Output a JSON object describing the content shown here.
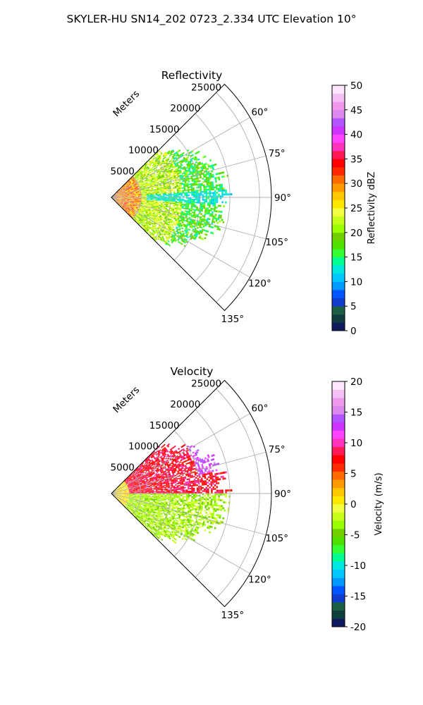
{
  "figure": {
    "title": "SKYLER-HU  SN14_202  0723_2.334 UTC Elevation 10°"
  },
  "chart_data": [
    {
      "type": "polar-sector-heatmap",
      "title": "Reflectivity",
      "range_axis_label": "Meters",
      "range_ticks": [
        5000,
        10000,
        15000,
        20000,
        25000
      ],
      "range_limit": [
        0,
        27000
      ],
      "azimuth_limit_deg": [
        45,
        135
      ],
      "azimuth_ticks": [
        "60°",
        "75°",
        "90°",
        "105°",
        "120°",
        "135°"
      ],
      "grid": true,
      "colorbar": {
        "label": "Reflectivity dBZ",
        "ticks": [
          0,
          5,
          10,
          15,
          20,
          25,
          30,
          35,
          40,
          45,
          50
        ],
        "range": [
          0,
          50
        ],
        "colors": [
          "#0d1a5c",
          "#0f3d3d",
          "#1b5e44",
          "#123dcc",
          "#0055ff",
          "#0099ff",
          "#00c8ff",
          "#00e8e0",
          "#00ff90",
          "#33ff33",
          "#4fe000",
          "#6fd000",
          "#9aff00",
          "#c8ff1a",
          "#f0ff40",
          "#ffe800",
          "#ffc800",
          "#ff9a00",
          "#ff6a00",
          "#ff2a00",
          "#ff0000",
          "#ff1a55",
          "#ff33bb",
          "#ff44ff",
          "#cc33ff",
          "#b355ff",
          "#dd88ee",
          "#ee99ee",
          "#f5c0f5",
          "#ffe6ff"
        ]
      },
      "field": {
        "max_range_m": 21000,
        "zones": [
          {
            "range_m": [
              0,
              5000
            ],
            "dbz": 29
          },
          {
            "range_m": [
              5000,
              12000
            ],
            "dbz": 22
          },
          {
            "range_m": [
              12000,
              21000
            ],
            "dbz": 17
          }
        ],
        "echo_gap_azimuth_deg": 90,
        "echo_gap_dbz": 13
      }
    },
    {
      "type": "polar-sector-heatmap",
      "title": "Velocity",
      "range_axis_label": "Meters",
      "range_ticks": [
        5000,
        10000,
        15000,
        20000,
        25000
      ],
      "range_limit": [
        0,
        27000
      ],
      "azimuth_limit_deg": [
        45,
        135
      ],
      "azimuth_ticks": [
        "60°",
        "75°",
        "90°",
        "105°",
        "120°",
        "135°"
      ],
      "grid": true,
      "colorbar": {
        "label": "Velocity (m/s)",
        "ticks": [
          -20,
          -15,
          -10,
          -5,
          0,
          5,
          10,
          15,
          20
        ],
        "range": [
          -20,
          20
        ],
        "colors": [
          "#0d1a5c",
          "#0f3d3d",
          "#1b5e44",
          "#123dcc",
          "#0055ff",
          "#0099ff",
          "#00c8ff",
          "#00e8e0",
          "#00ff90",
          "#33ff33",
          "#4fe000",
          "#6fd000",
          "#9aff00",
          "#c8ff1a",
          "#f0ff40",
          "#ffe800",
          "#ffc800",
          "#ff9a00",
          "#ff6a00",
          "#ff2a00",
          "#ff0000",
          "#ff1a55",
          "#ff33bb",
          "#ff44ff",
          "#cc33ff",
          "#b355ff",
          "#dd88ee",
          "#ee99ee",
          "#f5c0f5",
          "#ffe6ff"
        ]
      },
      "field": {
        "max_range_m": 21000,
        "north_sector_velocity_ms": 8,
        "far_north_velocity_ms": 13,
        "south_sector_velocity_ms": -3,
        "near_radar_velocity_ms": 1
      }
    }
  ]
}
